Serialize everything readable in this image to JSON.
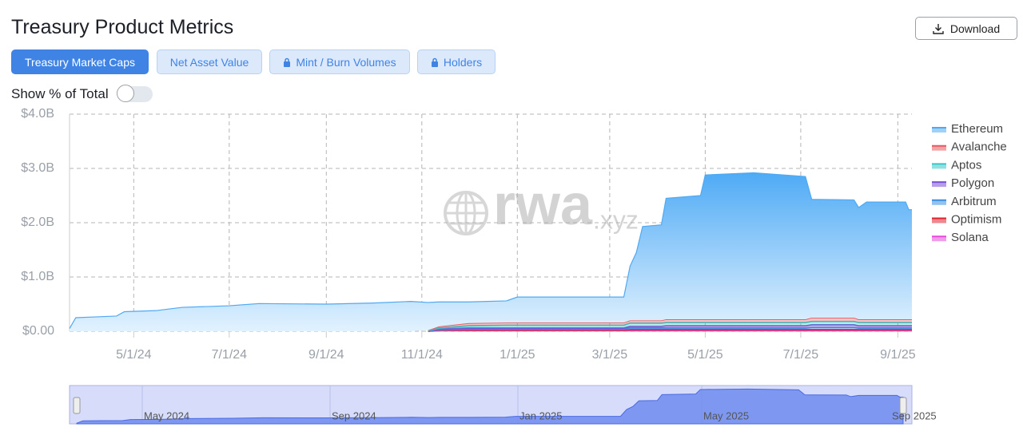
{
  "header": {
    "title": "Treasury Product Metrics",
    "download": "Download"
  },
  "tabs": [
    "Treasury Market Caps",
    "Net Asset Value",
    "Mint / Burn Volumes",
    "Holders"
  ],
  "toggle_label": "Show % of Total",
  "watermark": [
    "rwa",
    ".xyz"
  ],
  "navigator": {
    "labels": [
      "May 2024",
      "Sep 2024",
      "Jan 2025",
      "May 2025",
      "Sep 2025"
    ]
  },
  "chart_data": {
    "type": "stacked-area",
    "x": [
      "3/21/24",
      "3/25/24",
      "4/20/24",
      "4/25/24",
      "5/15/24",
      "6/1/24",
      "7/1/24",
      "7/20/24",
      "9/1/24",
      "10/1/24",
      "10/25/24",
      "11/5/24",
      "11/12/24",
      "12/1/24",
      "12/25/24",
      "1/1/25",
      "2/1/25",
      "3/10/25",
      "3/14/25",
      "3/18/25",
      "3/22/25",
      "4/3/25",
      "4/6/25",
      "4/28/25",
      "5/1/25",
      "6/1/25",
      "7/4/25",
      "7/8/25",
      "8/4/25",
      "8/7/25",
      "8/12/25",
      "9/6/25",
      "9/8/25",
      "9/10/25"
    ],
    "xlim": [
      "3/21/24",
      "9/10/25"
    ],
    "xticks": [
      "5/1/24",
      "7/1/24",
      "9/1/24",
      "11/1/24",
      "1/1/25",
      "3/1/25",
      "5/1/25",
      "7/1/25",
      "9/1/25"
    ],
    "ylim": [
      0,
      4
    ],
    "yticks": [
      {
        "value": 0,
        "label": "$0.00"
      },
      {
        "value": 1,
        "label": "$1.0B"
      },
      {
        "value": 2,
        "label": "$2.0B"
      },
      {
        "value": 3,
        "label": "$3.0B"
      },
      {
        "value": 4,
        "label": "$4.0B"
      }
    ],
    "grid": true,
    "legend": "right",
    "series": [
      {
        "name": "Ethereum",
        "color": "#4fa9f3",
        "values": [
          0.05,
          0.25,
          0.28,
          0.36,
          0.38,
          0.44,
          0.47,
          0.51,
          0.5,
          0.52,
          0.55,
          0.51,
          0.45,
          0.39,
          0.4,
          0.47,
          0.47,
          0.47,
          1.0,
          1.25,
          1.73,
          1.76,
          2.23,
          2.28,
          2.66,
          2.7,
          2.63,
          2.18,
          2.17,
          2.06,
          2.16,
          2.16,
          2.02,
          2.02
        ]
      },
      {
        "name": "Avalanche",
        "color": "#e8595f",
        "values": [
          null,
          null,
          null,
          null,
          null,
          null,
          null,
          null,
          null,
          null,
          null,
          0.01,
          0.03,
          0.05,
          0.05,
          0.05,
          0.05,
          0.05,
          0.05,
          0.05,
          0.05,
          0.05,
          0.06,
          0.06,
          0.06,
          0.06,
          0.06,
          0.07,
          0.07,
          0.06,
          0.06,
          0.06,
          0.06,
          0.06
        ]
      },
      {
        "name": "Aptos",
        "color": "#36c8c8",
        "values": [
          null,
          null,
          null,
          null,
          null,
          null,
          null,
          null,
          null,
          null,
          null,
          0.01,
          0.02,
          0.04,
          0.05,
          0.05,
          0.05,
          0.05,
          0.06,
          0.06,
          0.06,
          0.06,
          0.06,
          0.06,
          0.06,
          0.06,
          0.06,
          0.06,
          0.06,
          0.06,
          0.06,
          0.06,
          0.06,
          0.06
        ]
      },
      {
        "name": "Polygon",
        "color": "#7b4fd6",
        "values": [
          null,
          null,
          null,
          null,
          null,
          null,
          null,
          null,
          null,
          null,
          null,
          0,
          0.01,
          0.02,
          0.02,
          0.02,
          0.02,
          0.02,
          0.03,
          0.03,
          0.03,
          0.03,
          0.04,
          0.04,
          0.04,
          0.04,
          0.04,
          0.05,
          0.05,
          0.04,
          0.04,
          0.04,
          0.04,
          0.04
        ]
      },
      {
        "name": "Arbitrum",
        "color": "#3b8fe0",
        "values": [
          null,
          null,
          null,
          null,
          null,
          null,
          null,
          null,
          null,
          null,
          null,
          0,
          0.01,
          0.02,
          0.02,
          0.02,
          0.02,
          0.02,
          0.03,
          0.03,
          0.03,
          0.03,
          0.03,
          0.03,
          0.03,
          0.03,
          0.03,
          0.04,
          0.04,
          0.03,
          0.03,
          0.03,
          0.03,
          0.03
        ]
      },
      {
        "name": "Optimism",
        "color": "#e0242f",
        "values": [
          null,
          null,
          null,
          null,
          null,
          null,
          null,
          null,
          null,
          null,
          null,
          0,
          0.01,
          0.01,
          0.01,
          0.01,
          0.01,
          0.01,
          0.02,
          0.02,
          0.02,
          0.02,
          0.02,
          0.02,
          0.02,
          0.02,
          0.02,
          0.02,
          0.02,
          0.02,
          0.02,
          0.02,
          0.02,
          0.02
        ]
      },
      {
        "name": "Solana",
        "color": "#e64ad8",
        "values": [
          null,
          null,
          null,
          null,
          null,
          null,
          null,
          null,
          null,
          null,
          null,
          0,
          0.01,
          0.01,
          0.01,
          0.01,
          0.01,
          0.01,
          0.01,
          0.01,
          0.01,
          0.01,
          0.01,
          0.01,
          0.01,
          0.01,
          0.01,
          0.01,
          0.01,
          0.01,
          0.01,
          0.01,
          0.01,
          0.01
        ]
      }
    ]
  }
}
